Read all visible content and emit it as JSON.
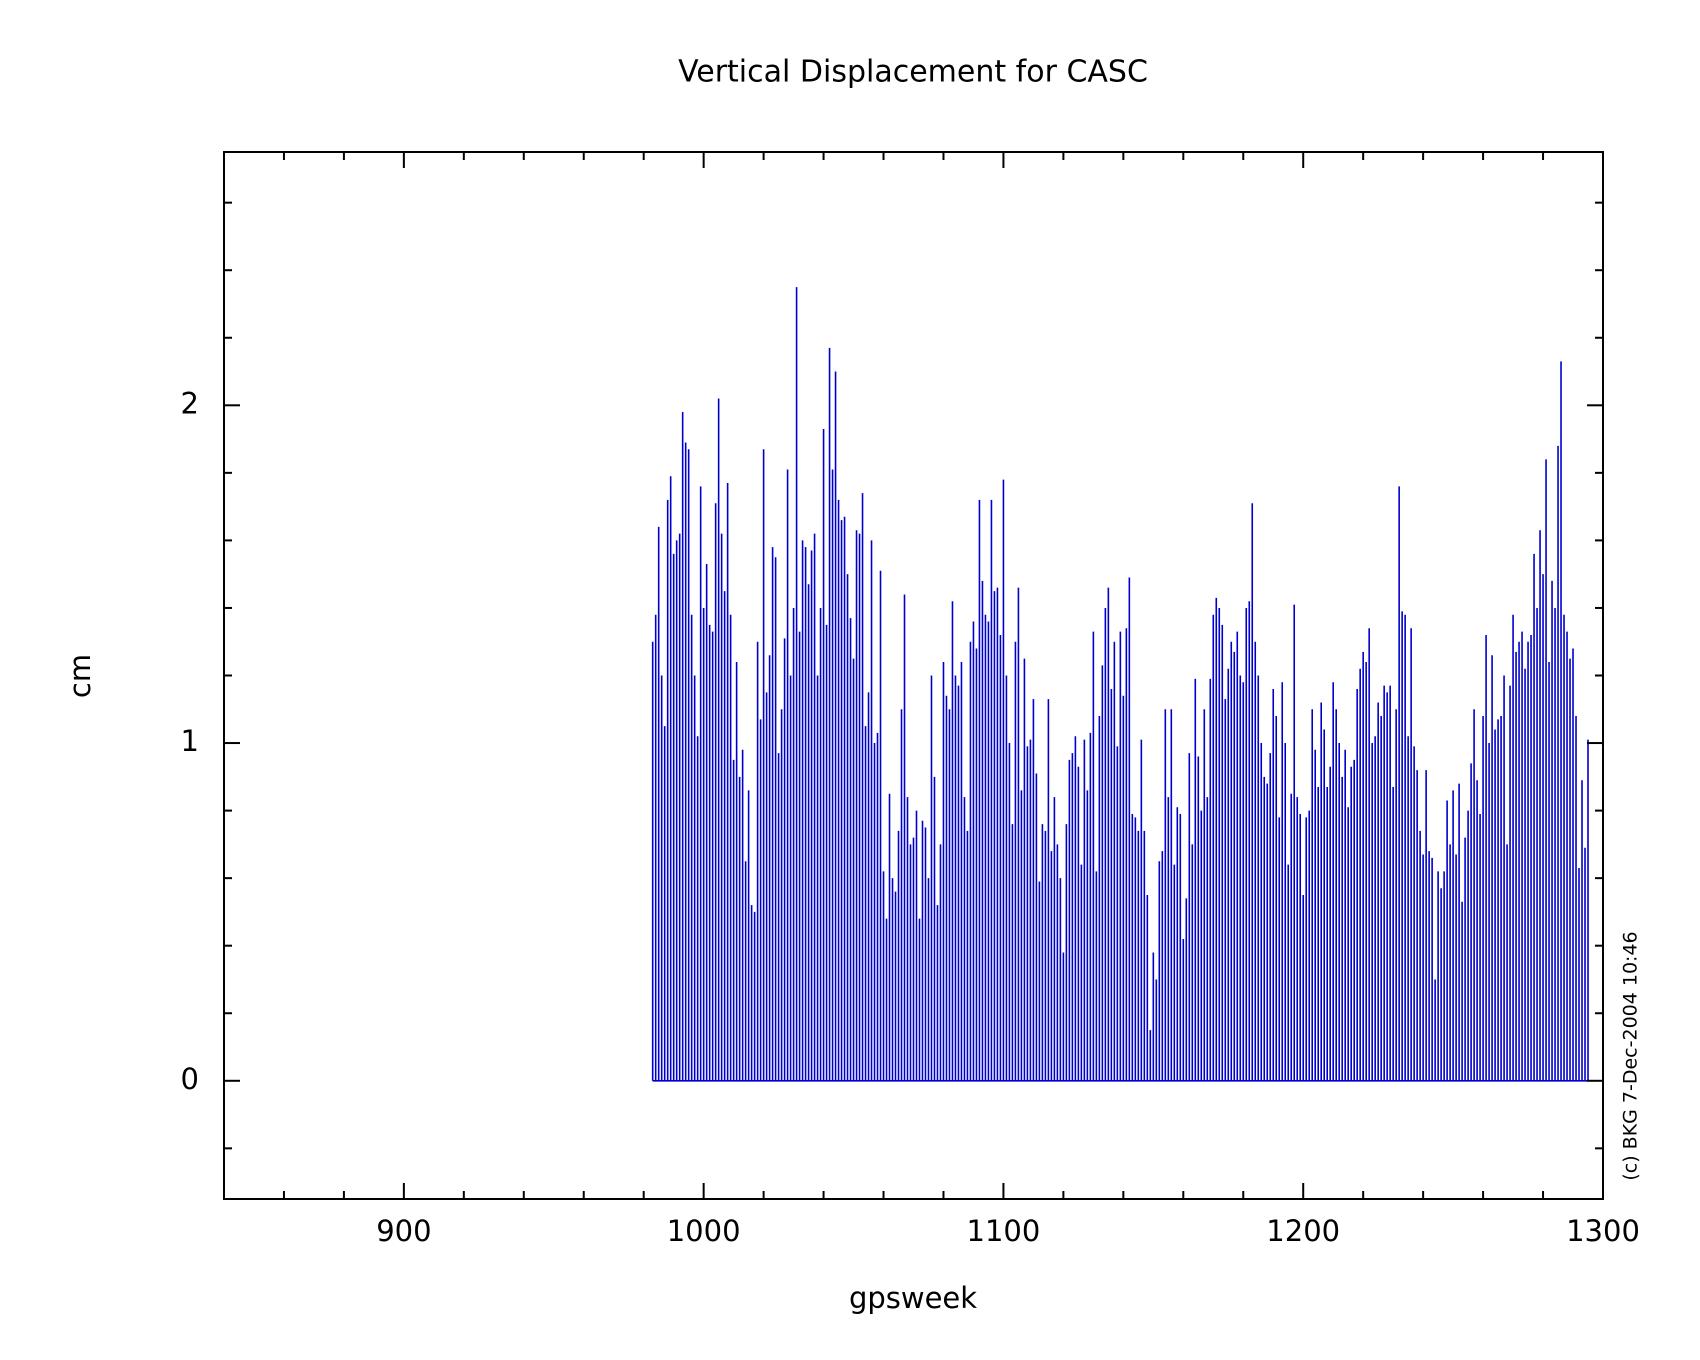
{
  "chart_data": {
    "type": "bar",
    "title": "Vertical Displacement for CASC",
    "xlabel": "gpsweek",
    "ylabel": "cm",
    "annotation": "(c) BKG 7-Dec-2004 10:46",
    "color": "#0000cc",
    "xlim": [
      840,
      1300
    ],
    "xticks": [
      900,
      1000,
      1100,
      1200,
      1300
    ],
    "xminorticks": [
      860,
      880,
      920,
      940,
      960,
      980,
      1020,
      1040,
      1060,
      1080,
      1120,
      1140,
      1160,
      1180,
      1220,
      1240,
      1260,
      1280
    ],
    "ylim": [
      -0.35,
      2.75
    ],
    "yticks": [
      0,
      1,
      2
    ],
    "yminorticks": [
      -0.2,
      0.2,
      0.4,
      0.6,
      0.8,
      1.2,
      1.4,
      1.6,
      1.8,
      2.2,
      2.4,
      2.6
    ],
    "x": [
      983,
      984,
      985,
      986,
      987,
      988,
      989,
      990,
      991,
      992,
      993,
      994,
      995,
      996,
      997,
      998,
      999,
      1000,
      1001,
      1002,
      1003,
      1004,
      1005,
      1006,
      1007,
      1008,
      1009,
      1010,
      1011,
      1012,
      1013,
      1014,
      1015,
      1016,
      1017,
      1018,
      1019,
      1020,
      1021,
      1022,
      1023,
      1024,
      1025,
      1026,
      1027,
      1028,
      1029,
      1030,
      1031,
      1032,
      1033,
      1034,
      1035,
      1036,
      1037,
      1038,
      1039,
      1040,
      1041,
      1042,
      1043,
      1044,
      1045,
      1046,
      1047,
      1048,
      1049,
      1050,
      1051,
      1052,
      1053,
      1054,
      1055,
      1056,
      1057,
      1058,
      1059,
      1060,
      1061,
      1062,
      1063,
      1064,
      1065,
      1066,
      1067,
      1068,
      1069,
      1070,
      1071,
      1072,
      1073,
      1074,
      1075,
      1076,
      1077,
      1078,
      1079,
      1080,
      1081,
      1082,
      1083,
      1084,
      1085,
      1086,
      1087,
      1088,
      1089,
      1090,
      1091,
      1092,
      1093,
      1094,
      1095,
      1096,
      1097,
      1098,
      1099,
      1100,
      1101,
      1102,
      1103,
      1104,
      1105,
      1106,
      1107,
      1108,
      1109,
      1110,
      1111,
      1112,
      1113,
      1114,
      1115,
      1116,
      1117,
      1118,
      1119,
      1120,
      1121,
      1122,
      1123,
      1124,
      1125,
      1126,
      1127,
      1128,
      1129,
      1130,
      1131,
      1132,
      1133,
      1134,
      1135,
      1136,
      1137,
      1138,
      1139,
      1140,
      1141,
      1142,
      1143,
      1144,
      1145,
      1146,
      1147,
      1148,
      1149,
      1150,
      1151,
      1152,
      1153,
      1154,
      1155,
      1156,
      1157,
      1158,
      1159,
      1160,
      1161,
      1162,
      1163,
      1164,
      1165,
      1166,
      1167,
      1168,
      1169,
      1170,
      1171,
      1172,
      1173,
      1174,
      1175,
      1176,
      1177,
      1178,
      1179,
      1180,
      1181,
      1182,
      1183,
      1184,
      1185,
      1186,
      1187,
      1188,
      1189,
      1190,
      1191,
      1192,
      1193,
      1194,
      1195,
      1196,
      1197,
      1198,
      1199,
      1200,
      1201,
      1202,
      1203,
      1204,
      1205,
      1206,
      1207,
      1208,
      1209,
      1210,
      1211,
      1212,
      1213,
      1214,
      1215,
      1216,
      1217,
      1218,
      1219,
      1220,
      1221,
      1222,
      1223,
      1224,
      1225,
      1226,
      1227,
      1228,
      1229,
      1230,
      1231,
      1232,
      1233,
      1234,
      1235,
      1236,
      1237,
      1238,
      1239,
      1240,
      1241,
      1242,
      1243,
      1244,
      1245,
      1246,
      1247,
      1248,
      1249,
      1250,
      1251,
      1252,
      1253,
      1254,
      1255,
      1256,
      1257,
      1258,
      1259,
      1260,
      1261,
      1262,
      1263,
      1264,
      1265,
      1266,
      1267,
      1268,
      1269,
      1270,
      1271,
      1272,
      1273,
      1274,
      1275,
      1276,
      1277,
      1278,
      1279,
      1280,
      1281,
      1282,
      1283,
      1284,
      1285,
      1286,
      1287,
      1288,
      1289,
      1290,
      1291,
      1292,
      1293,
      1294,
      1295
    ],
    "values": [
      1.3,
      1.38,
      1.64,
      1.2,
      1.05,
      1.72,
      1.79,
      1.56,
      1.6,
      1.62,
      1.98,
      1.89,
      1.87,
      1.38,
      1.2,
      1.02,
      1.76,
      1.4,
      1.53,
      1.35,
      1.33,
      1.71,
      2.02,
      1.62,
      1.45,
      1.77,
      1.38,
      0.95,
      1.24,
      0.9,
      0.98,
      0.65,
      0.86,
      0.52,
      0.5,
      1.3,
      1.07,
      1.87,
      1.15,
      1.26,
      1.58,
      1.55,
      0.97,
      1.1,
      1.31,
      1.81,
      1.2,
      1.4,
      2.35,
      1.33,
      1.6,
      1.58,
      1.47,
      1.57,
      1.62,
      1.2,
      1.4,
      1.93,
      1.35,
      2.17,
      1.81,
      2.1,
      1.72,
      1.66,
      1.67,
      1.5,
      1.37,
      1.25,
      1.63,
      1.62,
      1.74,
      1.05,
      1.15,
      1.6,
      1.0,
      1.03,
      1.51,
      0.62,
      0.48,
      0.85,
      0.6,
      0.56,
      0.74,
      1.1,
      1.44,
      0.84,
      0.7,
      0.72,
      0.8,
      0.48,
      0.77,
      0.75,
      0.6,
      1.2,
      0.9,
      0.52,
      0.7,
      1.24,
      1.14,
      1.1,
      1.42,
      1.2,
      1.17,
      1.24,
      0.84,
      0.74,
      1.3,
      1.36,
      1.28,
      1.72,
      1.48,
      1.38,
      1.36,
      1.72,
      1.45,
      1.46,
      1.32,
      1.78,
      1.2,
      1.0,
      0.76,
      1.3,
      1.46,
      0.86,
      1.25,
      0.99,
      1.01,
      1.13,
      0.91,
      0.59,
      0.76,
      0.74,
      1.13,
      0.68,
      0.84,
      0.7,
      0.6,
      0.38,
      0.76,
      0.95,
      0.97,
      1.02,
      0.93,
      0.64,
      1.01,
      0.86,
      1.03,
      1.33,
      0.62,
      1.08,
      1.23,
      1.4,
      1.46,
      1.16,
      1.3,
      0.99,
      1.33,
      1.14,
      1.34,
      1.49,
      0.79,
      0.78,
      0.74,
      1.01,
      0.74,
      0.55,
      0.15,
      0.38,
      0.3,
      0.65,
      0.68,
      1.1,
      0.84,
      1.1,
      0.64,
      0.81,
      0.79,
      0.42,
      0.54,
      0.97,
      0.7,
      1.19,
      0.96,
      0.8,
      1.1,
      0.84,
      1.19,
      1.38,
      1.43,
      1.4,
      1.35,
      1.13,
      1.22,
      1.3,
      1.27,
      1.33,
      1.2,
      1.18,
      1.4,
      1.42,
      1.71,
      1.3,
      1.2,
      1.0,
      0.9,
      0.88,
      0.97,
      1.16,
      1.08,
      0.78,
      1.18,
      1.0,
      0.64,
      0.85,
      1.41,
      0.84,
      0.79,
      0.55,
      0.78,
      0.8,
      1.1,
      0.98,
      0.87,
      1.12,
      1.04,
      0.87,
      0.93,
      1.18,
      1.1,
      1.0,
      0.9,
      0.98,
      0.81,
      0.93,
      0.95,
      1.16,
      1.22,
      1.27,
      1.24,
      1.34,
      1.0,
      1.02,
      1.12,
      1.08,
      1.17,
      1.15,
      1.17,
      0.87,
      1.1,
      1.76,
      1.39,
      1.38,
      1.02,
      1.34,
      0.99,
      0.92,
      0.74,
      0.67,
      0.92,
      0.68,
      0.66,
      0.3,
      0.62,
      0.57,
      0.62,
      0.83,
      0.7,
      0.86,
      0.67,
      0.88,
      0.53,
      0.72,
      0.8,
      0.94,
      1.1,
      0.89,
      0.79,
      1.08,
      1.32,
      1.0,
      1.26,
      1.04,
      1.07,
      1.08,
      1.2,
      0.7,
      1.17,
      1.38,
      1.27,
      1.3,
      1.33,
      1.22,
      1.3,
      1.32,
      1.56,
      1.4,
      1.63,
      1.5,
      1.84,
      1.24,
      1.48,
      1.4,
      1.88,
      2.13,
      1.38,
      1.33,
      1.25,
      1.28,
      1.08,
      0.63,
      0.89,
      0.69,
      1.01
    ]
  }
}
